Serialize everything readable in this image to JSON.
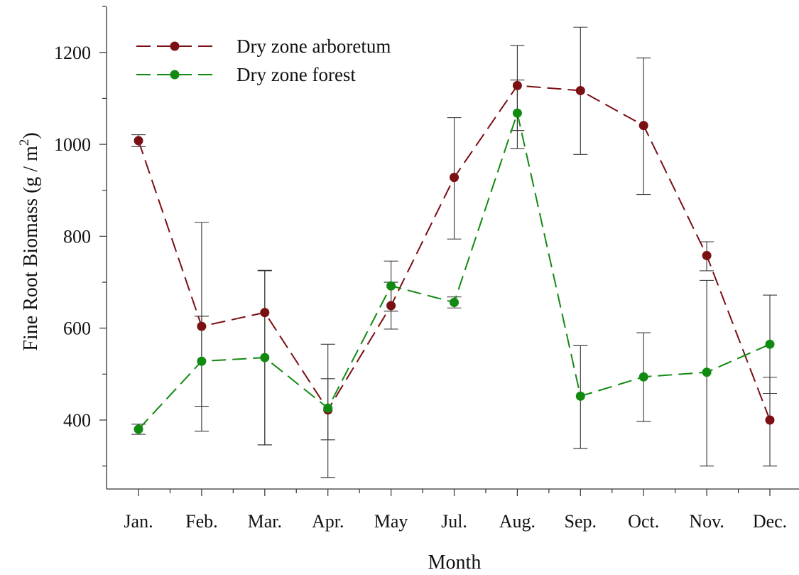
{
  "chart_data": {
    "type": "line",
    "categories": [
      "Jan.",
      "Feb.",
      "Mar.",
      "Apr.",
      "May",
      "Jul.",
      "Aug.",
      "Sep.",
      "Oct.",
      "Nov.",
      "Dec."
    ],
    "xlabel": "Month",
    "ylabel": "Fine Root Biomass (g / m",
    "ylabel_superscript": "2",
    "ylabel_suffix": ")",
    "ylim": [
      270,
      1300
    ],
    "yticks": [
      400,
      600,
      800,
      1000,
      1200
    ],
    "yminor": [
      300,
      500,
      700,
      900,
      1100,
      1300
    ],
    "grid": false,
    "legend_position": "top-left",
    "series": [
      {
        "name": "Dry zone arboretum",
        "color": "#7a0f14",
        "values": [
          1008,
          604,
          634,
          422,
          649,
          928,
          1128,
          1117,
          1041,
          758,
          400
        ],
        "error_low": [
          995,
          376,
          346,
          275,
          598,
          794,
          991,
          978,
          891,
          725,
          300
        ],
        "error_high": [
          1021,
          830,
          725,
          565,
          700,
          1058,
          1215,
          1255,
          1188,
          788,
          493
        ]
      },
      {
        "name": "Dry zone forest",
        "color": "#118a11",
        "values": [
          380,
          528,
          536,
          426,
          692,
          656,
          1068,
          452,
          494,
          504,
          565
        ],
        "error_low": [
          369,
          430,
          346,
          357,
          637,
          644,
          1030,
          338,
          397,
          300,
          458
        ],
        "error_high": [
          391,
          626,
          726,
          490,
          746,
          668,
          1140,
          562,
          590,
          704,
          672
        ]
      }
    ]
  }
}
